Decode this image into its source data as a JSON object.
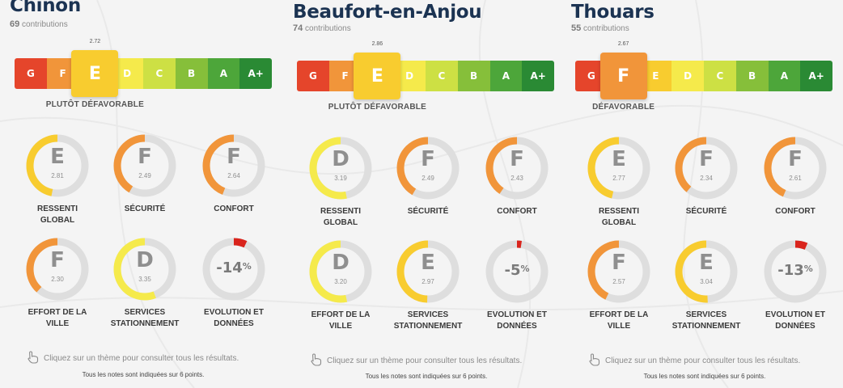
{
  "colors": {
    "G": "#e5452b",
    "F": "#f1953a",
    "E": "#f8cc2f",
    "D": "#f5ea4b",
    "C": "#cde044",
    "B": "#86bf3a",
    "A": "#4da63a",
    "A+": "#2a8a34",
    "ring_track": "#dedede",
    "ring_E": "#f8cc2f",
    "ring_F": "#f1953a",
    "ring_D": "#f5ea4b",
    "evo_red": "#d9241c"
  },
  "grades": [
    "G",
    "F",
    "E",
    "D",
    "C",
    "B",
    "A",
    "A+"
  ],
  "hint_icon": "pointing-hand-icon",
  "cities": [
    {
      "name": "Chinon",
      "contributions_count": "69",
      "contributions_label": "contributions",
      "overall_grade": "E",
      "overall_score": "2.72",
      "overall_label": "PLUTÔT DÉFAVORABLE",
      "themes": [
        {
          "grade": "E",
          "score": "2.81",
          "label1": "RESSENTI",
          "label2": "GLOBAL",
          "fraction": 0.468
        },
        {
          "grade": "F",
          "score": "2.49",
          "label1": "SÉCURITÉ",
          "label2": "",
          "fraction": 0.415
        },
        {
          "grade": "F",
          "score": "2.64",
          "label1": "CONFORT",
          "label2": "",
          "fraction": 0.44
        },
        {
          "grade": "F",
          "score": "2.30",
          "label1": "EFFORT DE LA",
          "label2": "VILLE",
          "fraction": 0.383
        },
        {
          "grade": "D",
          "score": "3.35",
          "label1": "SERVICES",
          "label2": "STATIONNEMENT",
          "fraction": 0.558
        }
      ],
      "evolution": {
        "value": "-14",
        "unit": "%",
        "label1": "EVOLUTION ET",
        "label2": "DONNÉES",
        "fraction": 0.07
      },
      "hint": "Cliquez sur un thème pour consulter tous les résultats.",
      "note": "Tous les notes sont indiquées sur 6 points."
    },
    {
      "name": "Beaufort-en-Anjou",
      "contributions_count": "74",
      "contributions_label": "contributions",
      "overall_grade": "E",
      "overall_score": "2.86",
      "overall_label": "PLUTÔT DÉFAVORABLE",
      "themes": [
        {
          "grade": "D",
          "score": "3.19",
          "label1": "RESSENTI",
          "label2": "GLOBAL",
          "fraction": 0.532
        },
        {
          "grade": "F",
          "score": "2.49",
          "label1": "SÉCURITÉ",
          "label2": "",
          "fraction": 0.415
        },
        {
          "grade": "F",
          "score": "2.43",
          "label1": "CONFORT",
          "label2": "",
          "fraction": 0.405
        },
        {
          "grade": "D",
          "score": "3.20",
          "label1": "EFFORT DE LA",
          "label2": "VILLE",
          "fraction": 0.533
        },
        {
          "grade": "E",
          "score": "2.97",
          "label1": "SERVICES",
          "label2": "STATIONNEMENT",
          "fraction": 0.495
        }
      ],
      "evolution": {
        "value": "-5",
        "unit": "%",
        "label1": "EVOLUTION ET",
        "label2": "DONNÉES",
        "fraction": 0.025
      },
      "hint": "Cliquez sur un thème pour consulter tous les résultats.",
      "note": "Tous les notes sont indiquées sur 6 points."
    },
    {
      "name": "Thouars",
      "contributions_count": "55",
      "contributions_label": "contributions",
      "overall_grade": "F",
      "overall_score": "2.67",
      "overall_label": "DÉFAVORABLE",
      "themes": [
        {
          "grade": "E",
          "score": "2.77",
          "label1": "RESSENTI",
          "label2": "GLOBAL",
          "fraction": 0.462
        },
        {
          "grade": "F",
          "score": "2.34",
          "label1": "SÉCURITÉ",
          "label2": "",
          "fraction": 0.39
        },
        {
          "grade": "F",
          "score": "2.61",
          "label1": "CONFORT",
          "label2": "",
          "fraction": 0.435
        },
        {
          "grade": "F",
          "score": "2.57",
          "label1": "EFFORT DE LA",
          "label2": "VILLE",
          "fraction": 0.428
        },
        {
          "grade": "E",
          "score": "3.04",
          "label1": "SERVICES",
          "label2": "STATIONNEMENT",
          "fraction": 0.507
        }
      ],
      "evolution": {
        "value": "-13",
        "unit": "%",
        "label1": "EVOLUTION ET",
        "label2": "DONNÉES",
        "fraction": 0.065
      },
      "hint": "Cliquez sur un thème pour consulter tous les résultats.",
      "note": "Tous les notes sont indiquées sur 6 points."
    }
  ]
}
